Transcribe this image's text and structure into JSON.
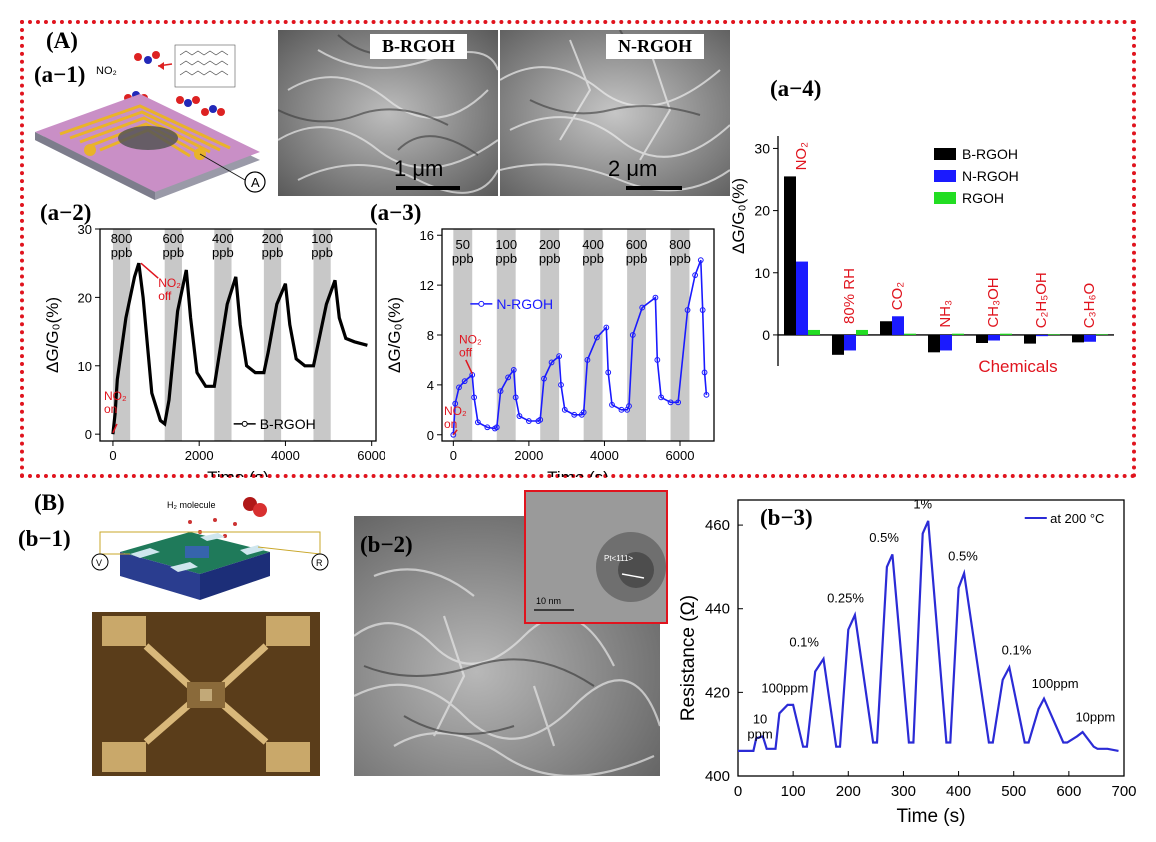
{
  "panel_labels": {
    "A": "(A)",
    "B": "(B)"
  },
  "subpanels": {
    "a1": "(a−1)",
    "a2": "(a−2)",
    "a3": "(a−3)",
    "a4": "(a−4)",
    "b1": "(b−1)",
    "b2": "(b−2)",
    "b3": "(b−3)"
  },
  "a1": {
    "no2_label": "NO₂",
    "meter": "A"
  },
  "sem": {
    "b_rgoh": {
      "label": "B-RGOH",
      "scale": "1 μm"
    },
    "n_rgoh": {
      "label": "N-RGOH",
      "scale": "2 μm"
    }
  },
  "b1": {
    "molecule_label": "H₂ molecule",
    "left_meter": "V",
    "right_meter": "R"
  },
  "b2": {
    "inset_lattice": "Pt<111>",
    "inset_scale": "10 nm"
  },
  "colors": {
    "red": "#e0141e",
    "b_rgoh": "#000000",
    "n_rgoh": "#1a1aff",
    "rgoh": "#22dd22",
    "purple_line": "#2b2bd6"
  },
  "chart_data": [
    {
      "id": "a2",
      "type": "line",
      "ylabel": "ΔG/G₀(%)",
      "xlabel": "Time (s)",
      "xlim": [
        -300,
        6100
      ],
      "ylim": [
        -1,
        30
      ],
      "xticks": [
        0,
        2000,
        4000,
        6000
      ],
      "yticks": [
        0,
        10,
        20,
        30
      ],
      "legend": "B-RGOH",
      "legend_position": "bottom-right",
      "shaded_bands": [
        [
          0,
          400
        ],
        [
          1200,
          1600
        ],
        [
          2350,
          2750
        ],
        [
          3500,
          3900
        ],
        [
          4650,
          5050
        ]
      ],
      "concentrations": [
        "800\nppb",
        "600\nppb",
        "400\nppb",
        "200\nppb",
        "100\nppb"
      ],
      "annotations": [
        {
          "text": "NO₂\non",
          "x": 0,
          "y": 0
        },
        {
          "text": "NO₂\noff",
          "x": 600,
          "y": 25
        }
      ],
      "series": [
        {
          "name": "B-RGOH",
          "x": [
            0,
            50,
            100,
            300,
            500,
            600,
            700,
            900,
            1100,
            1200,
            1300,
            1500,
            1700,
            1800,
            1950,
            2150,
            2350,
            2450,
            2650,
            2850,
            2950,
            3100,
            3300,
            3500,
            3600,
            3800,
            4000,
            4100,
            4250,
            4450,
            4650,
            4750,
            4950,
            5150,
            5250,
            5400,
            5600,
            5900
          ],
          "y": [
            0,
            3,
            8,
            17,
            23,
            25,
            20,
            6,
            2,
            1.5,
            5,
            18,
            24,
            17,
            9,
            7,
            7,
            11,
            19,
            23,
            16,
            10,
            9,
            9,
            12,
            19,
            22,
            16,
            11,
            10,
            10,
            13,
            19,
            22.5,
            17,
            14,
            13.5,
            13
          ]
        }
      ]
    },
    {
      "id": "a3",
      "type": "line",
      "ylabel": "ΔG/G₀(%)",
      "xlabel": "Time (s)",
      "xlim": [
        -300,
        6900
      ],
      "ylim": [
        -0.5,
        16.5
      ],
      "xticks": [
        0,
        2000,
        4000,
        6000
      ],
      "yticks": [
        0,
        4,
        8,
        12,
        16
      ],
      "legend": "N-RGOH",
      "legend_position": "top-left",
      "shaded_bands": [
        [
          0,
          500
        ],
        [
          1150,
          1650
        ],
        [
          2300,
          2800
        ],
        [
          3450,
          3950
        ],
        [
          4600,
          5100
        ],
        [
          5750,
          6250
        ]
      ],
      "concentrations": [
        "50\nppb",
        "100\nppb",
        "200\nppb",
        "400\nppb",
        "600\nppb",
        "800\nppb"
      ],
      "annotations": [
        {
          "text": "NO₂\non",
          "x": 0,
          "y": 0
        },
        {
          "text": "NO₂\noff",
          "x": 500,
          "y": 4.8
        }
      ],
      "series": [
        {
          "name": "N-RGOH",
          "x": [
            0,
            50,
            150,
            300,
            500,
            550,
            650,
            900,
            1100,
            1150,
            1250,
            1450,
            1600,
            1650,
            1750,
            2000,
            2250,
            2300,
            2400,
            2600,
            2800,
            2850,
            2950,
            3200,
            3400,
            3450,
            3550,
            3800,
            4050,
            4100,
            4200,
            4450,
            4600,
            4650,
            4750,
            5000,
            5350,
            5400,
            5500,
            5750,
            5950,
            6200,
            6400,
            6550,
            6600,
            6650,
            6700
          ],
          "y": [
            0,
            2.5,
            3.8,
            4.3,
            4.8,
            3,
            1,
            0.6,
            0.5,
            0.6,
            3.5,
            4.6,
            5.2,
            3,
            1.5,
            1.1,
            1.1,
            1.2,
            4.5,
            5.8,
            6.3,
            4,
            2,
            1.6,
            1.6,
            1.8,
            6,
            7.8,
            8.6,
            5,
            2.4,
            2,
            2,
            2.3,
            8,
            10.2,
            11,
            6,
            3,
            2.6,
            2.6,
            10,
            12.8,
            14,
            10,
            5,
            3.2
          ]
        }
      ]
    },
    {
      "id": "a4",
      "type": "bar",
      "ylabel": "ΔG/G₀(%)",
      "xlabel": "Chemicals",
      "ylim": [
        -5,
        32
      ],
      "yticks": [
        0,
        10,
        20,
        30
      ],
      "legend_position": "top-right",
      "categories": [
        "NO₂",
        "80% RH",
        "CO₂",
        "NH₃",
        "CH₃OH",
        "C₂H₅OH",
        "C₃H₆O"
      ],
      "series": [
        {
          "name": "B-RGOH",
          "values": [
            25.5,
            -3.2,
            2.2,
            -2.8,
            -1.3,
            -1.4,
            -1.2
          ]
        },
        {
          "name": "N-RGOH",
          "values": [
            11.8,
            -2.5,
            3.0,
            -2.5,
            -0.9,
            -0.2,
            -1.1
          ]
        },
        {
          "name": "RGOH",
          "values": [
            0.8,
            0.8,
            0.2,
            0.2,
            0.2,
            0.1,
            0.1
          ]
        }
      ]
    },
    {
      "id": "b3",
      "type": "line",
      "ylabel": "Resistance (Ω)",
      "xlabel": "Time (s)",
      "xlim": [
        0,
        700
      ],
      "ylim": [
        400,
        466
      ],
      "xticks": [
        0,
        100,
        200,
        300,
        400,
        500,
        600,
        700
      ],
      "yticks": [
        400,
        420,
        440,
        460
      ],
      "legend": "at 200 °C",
      "legend_position": "top-right",
      "peak_labels": [
        "10\nppm",
        "100ppm",
        "0.1%",
        "0.25%",
        "0.5%",
        "1%",
        "0.5%",
        "0.1%",
        "100ppm",
        "10ppm"
      ],
      "series": [
        {
          "name": "at 200 °C",
          "x": [
            0,
            28,
            33,
            45,
            52,
            68,
            75,
            90,
            100,
            118,
            125,
            140,
            155,
            178,
            185,
            200,
            212,
            245,
            252,
            270,
            280,
            310,
            318,
            335,
            345,
            378,
            385,
            400,
            410,
            455,
            462,
            480,
            492,
            520,
            527,
            545,
            555,
            590,
            597,
            615,
            625,
            645,
            652,
            660,
            670,
            690
          ],
          "y": [
            406,
            406,
            409,
            409.5,
            406.5,
            406.5,
            415,
            417,
            417,
            407,
            407,
            425,
            428,
            407,
            407,
            435,
            438.5,
            408,
            408,
            450,
            453,
            408,
            408,
            458,
            461,
            408,
            408,
            445,
            448.5,
            408,
            408,
            423,
            426,
            408,
            408,
            416,
            418.5,
            408,
            408,
            409.5,
            410.5,
            407,
            406.5,
            406.5,
            406.5,
            406
          ]
        }
      ]
    }
  ]
}
